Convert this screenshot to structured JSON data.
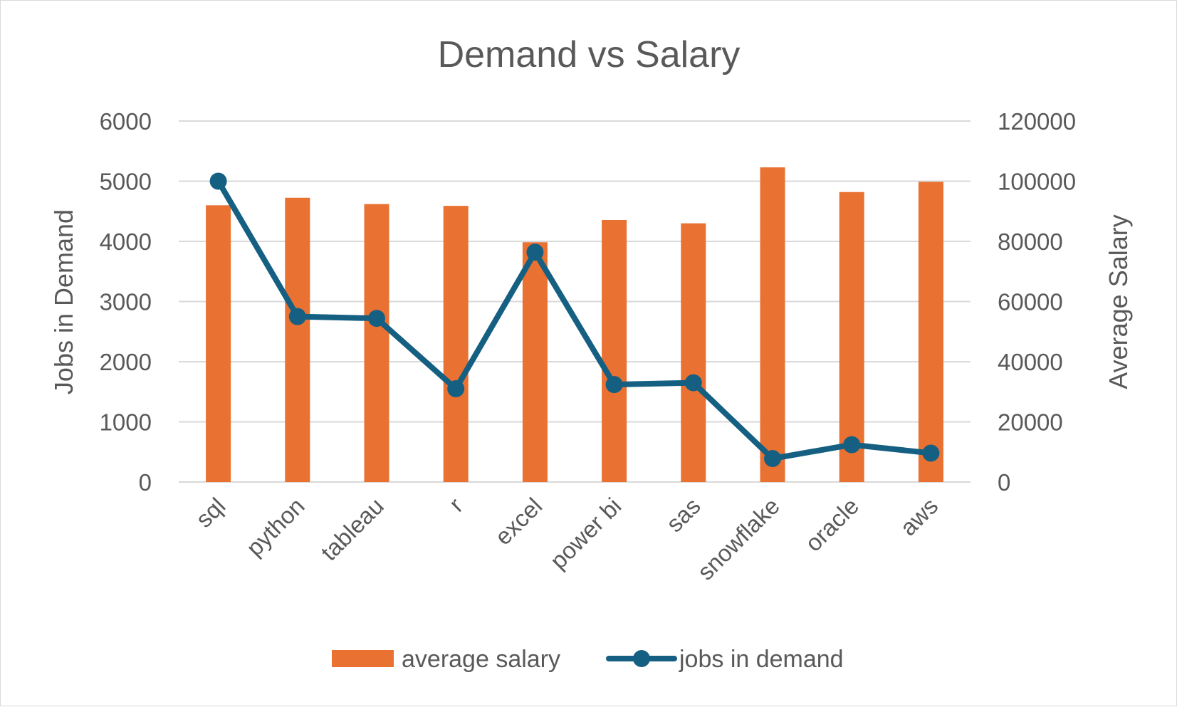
{
  "chart_data": {
    "type": "bar",
    "title": "Demand vs Salary",
    "categories": [
      "sql",
      "python",
      "tableau",
      "r",
      "excel",
      "power bi",
      "sas",
      "snowflake",
      "oracle",
      "aws"
    ],
    "series": [
      {
        "name": "average salary",
        "type": "bar",
        "axis": "secondary",
        "color": "#E97132",
        "values": [
          92000,
          94500,
          92400,
          91800,
          79700,
          87100,
          86000,
          104600,
          96400,
          99800
        ]
      },
      {
        "name": "jobs in demand",
        "type": "line",
        "axis": "primary",
        "color": "#156082",
        "values": [
          5000,
          2750,
          2720,
          1550,
          3820,
          1620,
          1650,
          390,
          620,
          480
        ]
      }
    ],
    "ylabel": "Jobs in Demand",
    "y2label": "Average Salary",
    "ylim": [
      0,
      6000
    ],
    "y2lim": [
      0,
      120000
    ],
    "yticks": [
      "0",
      "1000",
      "2000",
      "3000",
      "4000",
      "5000",
      "6000"
    ],
    "y2ticks": [
      "0",
      "20000",
      "40000",
      "60000",
      "80000",
      "100000",
      "120000"
    ],
    "grid": true,
    "legend": "bottom"
  }
}
